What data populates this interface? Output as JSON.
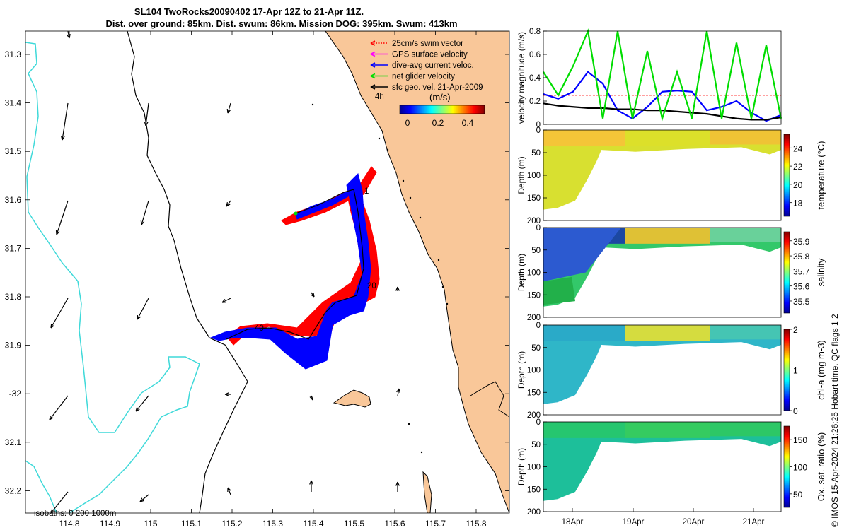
{
  "title": {
    "line1": "SL104 TwoRocks20090402 17-Apr 12Z to 21-Apr 11Z.",
    "line2": "Dist. over ground: 85km. Dist. swum: 86km. Mission DOG: 395km. Swum: 413km"
  },
  "colors": {
    "land": "#f9c799",
    "isobath_shallow": "#000000",
    "isobath_deep": "#3fd9d9",
    "swim": "#ff0000",
    "gps": "#ff00ff",
    "dive_avg": "#0000ff",
    "net": "#00dd00",
    "geo": "#000000"
  },
  "map": {
    "lon_ticks": [
      "114.8",
      "114.9",
      "115",
      "115.1",
      "115.2",
      "115.3",
      "115.4",
      "115.5",
      "115.6",
      "115.7",
      "115.8"
    ],
    "lat_ticks": [
      "31.3",
      "31.4",
      "31.5",
      "31.6",
      "31.7",
      "31.8",
      "31.9",
      "-32",
      "32.1",
      "32.2"
    ],
    "legend": [
      {
        "label": "25cm/s swim vector",
        "color": "#ff0000"
      },
      {
        "label": "GPS surface velocity",
        "color": "#ff00ff"
      },
      {
        "label": "dive-avg current veloc.",
        "color": "#0000ff"
      },
      {
        "label": "net glider velocity",
        "color": "#00dd00"
      },
      {
        "label": "sfc geo. vel. 21-Apr-2009",
        "color": "#000000"
      }
    ],
    "colorbar": {
      "unit_label": "(m/s)",
      "time_label": "4h",
      "ticks": [
        "0",
        "0.2",
        "0.4"
      ]
    },
    "isobath_note": "isobaths: 0   200  1000m",
    "track_labels": [
      "1",
      "20",
      "40"
    ]
  },
  "chart_data": [
    {
      "type": "line",
      "ylabel": "velocity magnitude (m/s)",
      "ylim": [
        0,
        0.8
      ],
      "yticks": [
        "0",
        "0.2",
        "0.4",
        "0.6",
        "0.8"
      ],
      "x": [
        0.0,
        0.25,
        0.5,
        0.75,
        1.0,
        1.25,
        1.5,
        1.75,
        2.0,
        2.25,
        2.5,
        2.75,
        3.0,
        3.25,
        3.5,
        3.75,
        4.0
      ],
      "series": [
        {
          "color": "#ff0000",
          "values": [
            0.25,
            0.25,
            0.25,
            0.25,
            0.25,
            0.25,
            0.25,
            0.25,
            0.25,
            0.25,
            0.25,
            0.25,
            0.25,
            0.25,
            0.25,
            0.25,
            0.25
          ]
        },
        {
          "color": "#0000ff",
          "values": [
            0.26,
            0.22,
            0.28,
            0.45,
            0.35,
            0.12,
            0.05,
            0.15,
            0.28,
            0.29,
            0.28,
            0.12,
            0.15,
            0.2,
            0.1,
            0.03,
            0.08
          ]
        },
        {
          "color": "#000000",
          "values": [
            0.18,
            0.16,
            0.15,
            0.14,
            0.14,
            0.13,
            0.13,
            0.12,
            0.12,
            0.11,
            0.1,
            0.09,
            0.07,
            0.05,
            0.04,
            0.04,
            0.06
          ]
        },
        {
          "color": "#00dd00",
          "values": [
            0.45,
            0.25,
            0.5,
            0.8,
            0.05,
            0.8,
            0.05,
            0.63,
            0.05,
            0.45,
            0.05,
            0.8,
            0.05,
            0.7,
            0.05,
            0.68,
            0.05
          ]
        }
      ]
    },
    {
      "type": "heatmap",
      "ylabel": "Depth (m)",
      "colorbar_label": "temperature (°C)",
      "yticks": [
        "0",
        "50",
        "100",
        "150",
        "200"
      ],
      "cbticks": [
        "18",
        "20",
        "22",
        "24"
      ],
      "cbrange": [
        16.5,
        25.5
      ]
    },
    {
      "type": "heatmap",
      "ylabel": "Depth (m)",
      "colorbar_label": "salinity",
      "yticks": [
        "0",
        "50",
        "100",
        "150",
        "200"
      ],
      "cbticks": [
        "35.5",
        "35.6",
        "35.7",
        "35.8",
        "35.9"
      ],
      "cbrange": [
        35.42,
        35.96
      ]
    },
    {
      "type": "heatmap",
      "ylabel": "Depth (m)",
      "colorbar_label": "chl-a (mg m-3)",
      "yticks": [
        "0",
        "50",
        "100",
        "150",
        "200"
      ],
      "cbticks": [
        "0",
        "1",
        "2"
      ],
      "cbrange": [
        0,
        2
      ]
    },
    {
      "type": "heatmap",
      "ylabel": "Depth (m)",
      "colorbar_label": "Ox. sat. ratio (%)",
      "yticks": [
        "0",
        "50",
        "100",
        "150",
        "200"
      ],
      "cbticks": [
        "50",
        "100",
        "150"
      ],
      "cbrange": [
        25,
        175
      ]
    }
  ],
  "time_axis": {
    "ticks": [
      "18Apr",
      "19Apr",
      "20Apr",
      "21Apr"
    ]
  },
  "credit": "© IMOS 15-Apr-2024 21:26:25 Hobart time. QC flags 1  2"
}
